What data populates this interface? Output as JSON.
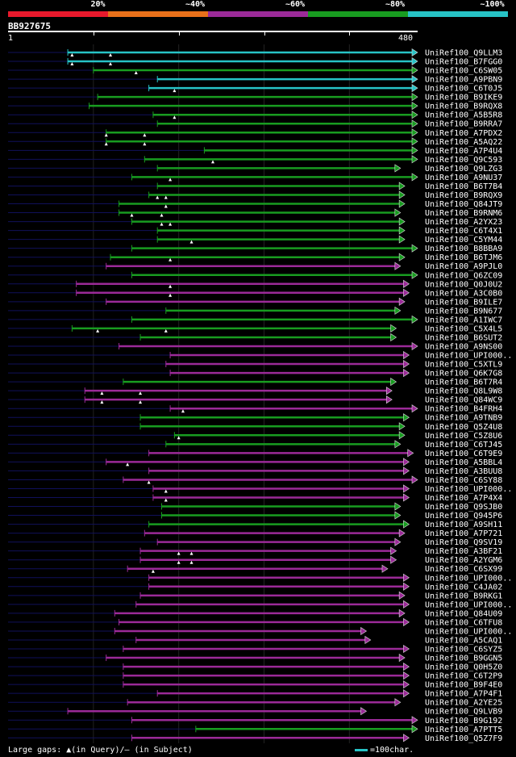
{
  "legend": {
    "labels": [
      "20%",
      "~40%",
      "~60%",
      "~80%",
      "~100%"
    ],
    "colors": [
      "#e8192c",
      "#e8701a",
      "#9b2a98",
      "#189c20",
      "#27c3c6"
    ]
  },
  "query": {
    "id": "BB927675",
    "start": "1",
    "end": "480",
    "length": 480
  },
  "footer": {
    "gaps_note": "Large gaps: ▲(in Query)/– (in Subject)",
    "scale_note": "=100char."
  },
  "chart_data": {
    "type": "alignment-overview",
    "query_length": 480,
    "hits": [
      {
        "name": "UniRef100_Q9LLM3",
        "color": "cyan",
        "start": 70,
        "end": 480,
        "marks": [
          75,
          120
        ]
      },
      {
        "name": "UniRef100_B7FGG0",
        "color": "cyan",
        "start": 70,
        "end": 480,
        "marks": [
          75,
          120
        ]
      },
      {
        "name": "UniRef100_C6SW05",
        "color": "green",
        "start": 100,
        "end": 480,
        "marks": [
          150
        ]
      },
      {
        "name": "UniRef100_A9PBN9",
        "color": "cyan",
        "start": 175,
        "end": 480,
        "marks": []
      },
      {
        "name": "UniRef100_C6T0J5",
        "color": "cyan",
        "start": 165,
        "end": 480,
        "marks": [
          195
        ]
      },
      {
        "name": "UniRef100_B9IKE9",
        "color": "green",
        "start": 105,
        "end": 480,
        "marks": []
      },
      {
        "name": "UniRef100_B9RQX8",
        "color": "green",
        "start": 95,
        "end": 480,
        "marks": []
      },
      {
        "name": "UniRef100_A5B5R8",
        "color": "green",
        "start": 170,
        "end": 480,
        "marks": [
          195
        ]
      },
      {
        "name": "UniRef100_B9RRA7",
        "color": "green",
        "start": 175,
        "end": 480,
        "marks": []
      },
      {
        "name": "UniRef100_A7PDX2",
        "color": "green",
        "start": 115,
        "end": 480,
        "marks": [
          115,
          160
        ]
      },
      {
        "name": "UniRef100_A5AQ22",
        "color": "green",
        "start": 115,
        "end": 480,
        "marks": [
          115,
          160
        ]
      },
      {
        "name": "UniRef100_A7P4U4",
        "color": "green",
        "start": 230,
        "end": 480,
        "marks": []
      },
      {
        "name": "UniRef100_Q9C593",
        "color": "green",
        "start": 160,
        "end": 480,
        "marks": [
          240
        ]
      },
      {
        "name": "UniRef100_Q9LZG3",
        "color": "green",
        "start": 175,
        "end": 460,
        "marks": []
      },
      {
        "name": "UniRef100_A9NU37",
        "color": "green",
        "start": 145,
        "end": 480,
        "marks": [
          190
        ]
      },
      {
        "name": "UniRef100_B6T7B4",
        "color": "green",
        "start": 175,
        "end": 465,
        "marks": []
      },
      {
        "name": "UniRef100_B9RQX9",
        "color": "green",
        "start": 165,
        "end": 465,
        "marks": [
          175,
          185
        ]
      },
      {
        "name": "UniRef100_Q84JT9",
        "color": "green",
        "start": 130,
        "end": 465,
        "marks": [
          185
        ]
      },
      {
        "name": "UniRef100_B9RNM6",
        "color": "green",
        "start": 130,
        "end": 460,
        "marks": [
          145,
          180
        ]
      },
      {
        "name": "UniRef100_A2YX23",
        "color": "green",
        "start": 145,
        "end": 465,
        "marks": [
          180,
          190
        ]
      },
      {
        "name": "UniRef100_C6T4X1",
        "color": "green",
        "start": 175,
        "end": 465,
        "marks": []
      },
      {
        "name": "UniRef100_C5YM44",
        "color": "green",
        "start": 175,
        "end": 465,
        "marks": [
          215
        ]
      },
      {
        "name": "UniRef100_B8BBA9",
        "color": "green",
        "start": 145,
        "end": 480,
        "marks": []
      },
      {
        "name": "UniRef100_B6TJM6",
        "color": "green",
        "start": 120,
        "end": 465,
        "marks": [
          190
        ]
      },
      {
        "name": "UniRef100_A9PJL0",
        "color": "magenta",
        "start": 115,
        "end": 460,
        "marks": []
      },
      {
        "name": "UniRef100_Q6ZC09",
        "color": "green",
        "start": 145,
        "end": 480,
        "marks": []
      },
      {
        "name": "UniRef100_Q0J0U2",
        "color": "magenta",
        "start": 80,
        "end": 470,
        "marks": [
          190
        ]
      },
      {
        "name": "UniRef100_A3C0B0",
        "color": "magenta",
        "start": 80,
        "end": 470,
        "marks": [
          190
        ]
      },
      {
        "name": "UniRef100_B9ILE7",
        "color": "magenta",
        "start": 115,
        "end": 465,
        "marks": []
      },
      {
        "name": "UniRef100_B9N677",
        "color": "green",
        "start": 185,
        "end": 460,
        "marks": []
      },
      {
        "name": "UniRef100_A1IWC7",
        "color": "green",
        "start": 145,
        "end": 480,
        "marks": []
      },
      {
        "name": "UniRef100_C5X4L5",
        "color": "green",
        "start": 75,
        "end": 455,
        "marks": [
          105,
          185
        ]
      },
      {
        "name": "UniRef100_B6SUT2",
        "color": "green",
        "start": 155,
        "end": 455,
        "marks": []
      },
      {
        "name": "UniRef100_A9NS00",
        "color": "magenta",
        "start": 130,
        "end": 480,
        "marks": []
      },
      {
        "name": "UniRef100_UPI000..",
        "color": "magenta",
        "start": 190,
        "end": 470,
        "marks": []
      },
      {
        "name": "UniRef100_C5XTL9",
        "color": "magenta",
        "start": 185,
        "end": 470,
        "marks": []
      },
      {
        "name": "UniRef100_Q6K7G8",
        "color": "magenta",
        "start": 190,
        "end": 470,
        "marks": []
      },
      {
        "name": "UniRef100_B6T7R4",
        "color": "green",
        "start": 135,
        "end": 455,
        "marks": []
      },
      {
        "name": "UniRef100_Q8L9W8",
        "color": "magenta",
        "start": 90,
        "end": 450,
        "marks": [
          110,
          155
        ]
      },
      {
        "name": "UniRef100_Q84WC9",
        "color": "magenta",
        "start": 90,
        "end": 450,
        "marks": [
          110,
          155
        ]
      },
      {
        "name": "UniRef100_B4FRH4",
        "color": "magenta",
        "start": 190,
        "end": 480,
        "marks": [
          205
        ]
      },
      {
        "name": "UniRef100_A9TNB9",
        "color": "green",
        "start": 155,
        "end": 470,
        "marks": []
      },
      {
        "name": "UniRef100_Q5Z4U8",
        "color": "green",
        "start": 155,
        "end": 465,
        "marks": []
      },
      {
        "name": "UniRef100_C5Z8U6",
        "color": "green",
        "start": 195,
        "end": 465,
        "marks": [
          200
        ]
      },
      {
        "name": "UniRef100_C6TJ45",
        "color": "green",
        "start": 185,
        "end": 460,
        "marks": []
      },
      {
        "name": "UniRef100_C6T9E9",
        "color": "magenta",
        "start": 165,
        "end": 475,
        "marks": []
      },
      {
        "name": "UniRef100_A5BBL4",
        "color": "magenta",
        "start": 115,
        "end": 470,
        "marks": [
          140
        ]
      },
      {
        "name": "UniRef100_A3BUU8",
        "color": "magenta",
        "start": 165,
        "end": 470,
        "marks": []
      },
      {
        "name": "UniRef100_C6SY88",
        "color": "magenta",
        "start": 135,
        "end": 480,
        "marks": [
          165
        ]
      },
      {
        "name": "UniRef100_UPI000..",
        "color": "magenta",
        "start": 170,
        "end": 470,
        "marks": [
          185
        ]
      },
      {
        "name": "UniRef100_A7P4X4",
        "color": "magenta",
        "start": 170,
        "end": 470,
        "marks": [
          185
        ]
      },
      {
        "name": "UniRef100_Q9SJB0",
        "color": "green",
        "start": 180,
        "end": 460,
        "marks": []
      },
      {
        "name": "UniRef100_Q945P6",
        "color": "green",
        "start": 180,
        "end": 460,
        "marks": []
      },
      {
        "name": "UniRef100_A9SH11",
        "color": "green",
        "start": 165,
        "end": 470,
        "marks": []
      },
      {
        "name": "UniRef100_A7P721",
        "color": "magenta",
        "start": 160,
        "end": 465,
        "marks": []
      },
      {
        "name": "UniRef100_Q9SV19",
        "color": "magenta",
        "start": 175,
        "end": 460,
        "marks": []
      },
      {
        "name": "UniRef100_A3BF21",
        "color": "magenta",
        "start": 155,
        "end": 455,
        "marks": [
          200,
          215
        ]
      },
      {
        "name": "UniRef100_A2YGM6",
        "color": "magenta",
        "start": 155,
        "end": 455,
        "marks": [
          200,
          215
        ]
      },
      {
        "name": "UniRef100_C6SX99",
        "color": "magenta",
        "start": 140,
        "end": 445,
        "marks": [
          170
        ]
      },
      {
        "name": "UniRef100_UPI000..",
        "color": "magenta",
        "start": 165,
        "end": 470,
        "marks": []
      },
      {
        "name": "UniRef100_C4JA02",
        "color": "magenta",
        "start": 165,
        "end": 470,
        "marks": []
      },
      {
        "name": "UniRef100_B9RKG1",
        "color": "magenta",
        "start": 155,
        "end": 465,
        "marks": []
      },
      {
        "name": "UniRef100_UPI000..",
        "color": "magenta",
        "start": 150,
        "end": 470,
        "marks": []
      },
      {
        "name": "UniRef100_Q84U09",
        "color": "magenta",
        "start": 125,
        "end": 465,
        "marks": []
      },
      {
        "name": "UniRef100_C6TFU8",
        "color": "magenta",
        "start": 130,
        "end": 470,
        "marks": []
      },
      {
        "name": "UniRef100_UPI000..",
        "color": "magenta",
        "start": 125,
        "end": 420,
        "marks": []
      },
      {
        "name": "UniRef100_A5CAQ1",
        "color": "magenta",
        "start": 150,
        "end": 425,
        "marks": []
      },
      {
        "name": "UniRef100_C6SYZ5",
        "color": "magenta",
        "start": 135,
        "end": 470,
        "marks": []
      },
      {
        "name": "UniRef100_B9GGN5",
        "color": "magenta",
        "start": 115,
        "end": 465,
        "marks": []
      },
      {
        "name": "UniRef100_Q0H5Z0",
        "color": "magenta",
        "start": 135,
        "end": 470,
        "marks": []
      },
      {
        "name": "UniRef100_C6T2P9",
        "color": "magenta",
        "start": 135,
        "end": 470,
        "marks": []
      },
      {
        "name": "UniRef100_B9F4E0",
        "color": "magenta",
        "start": 135,
        "end": 470,
        "marks": []
      },
      {
        "name": "UniRef100_A7P4F1",
        "color": "magenta",
        "start": 175,
        "end": 470,
        "marks": []
      },
      {
        "name": "UniRef100_A2YE25",
        "color": "magenta",
        "start": 140,
        "end": 460,
        "marks": []
      },
      {
        "name": "UniRef100_Q9LVB9",
        "color": "magenta",
        "start": 70,
        "end": 420,
        "marks": []
      },
      {
        "name": "UniRef100_B9G192",
        "color": "magenta",
        "start": 145,
        "end": 480,
        "marks": []
      },
      {
        "name": "UniRef100_A7PTT5",
        "color": "green",
        "start": 220,
        "end": 480,
        "marks": []
      },
      {
        "name": "UniRef100_Q5Z7F9",
        "color": "magenta",
        "start": 145,
        "end": 470,
        "marks": []
      }
    ]
  }
}
